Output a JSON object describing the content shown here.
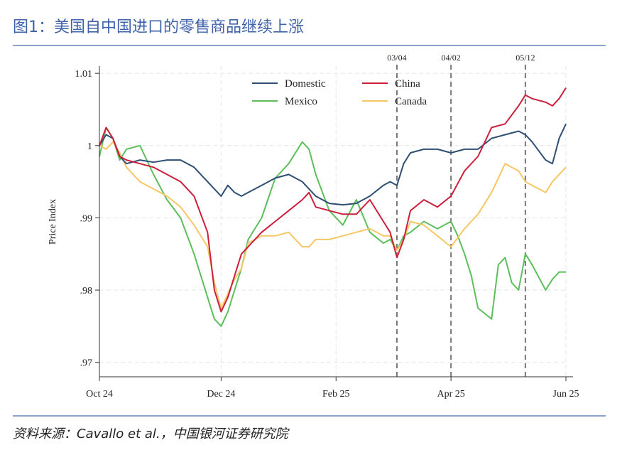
{
  "figure_title": "图1：美国自中国进口的零售商品继续上涨",
  "source": "资料来源：Cavallo et al.，中国银河证券研究院",
  "chart_data": {
    "type": "line",
    "title": "",
    "xlabel": "",
    "ylabel": "Price Index",
    "x_unit": "week index from Oct 24",
    "x_ticks": [
      {
        "x": 0,
        "label": "Oct 24"
      },
      {
        "x": 9,
        "label": "Dec 24"
      },
      {
        "x": 17.5,
        "label": "Feb 25"
      },
      {
        "x": 26,
        "label": "Apr 25"
      },
      {
        "x": 34.5,
        "label": "Jun 25"
      }
    ],
    "y_ticks": [
      {
        "y": 0.97,
        "label": ".97"
      },
      {
        "y": 0.98,
        "label": ".98"
      },
      {
        "y": 0.99,
        "label": ".99"
      },
      {
        "y": 1.0,
        "label": "1"
      },
      {
        "y": 1.01,
        "label": "1.01"
      }
    ],
    "xlim": [
      0,
      34.5
    ],
    "ylim": [
      0.968,
      1.011
    ],
    "grid": true,
    "legend_position": "top-center",
    "vlines": [
      {
        "x": 22,
        "label": "03/04"
      },
      {
        "x": 26,
        "label": "04/02"
      },
      {
        "x": 31.5,
        "label": "05/12"
      }
    ],
    "series": [
      {
        "name": "Domestic",
        "color": "#2e4f73",
        "x": [
          0,
          0.5,
          1,
          1.5,
          2,
          3,
          4,
          5,
          6,
          7,
          8,
          9,
          9.5,
          10,
          10.5,
          11,
          12,
          13,
          14,
          15,
          16,
          17,
          18,
          19,
          20,
          21,
          21.5,
          22,
          22.5,
          23,
          24,
          25,
          26,
          27,
          28,
          29,
          30,
          31,
          31.5,
          32,
          33,
          33.5,
          34,
          34.5
        ],
        "y": [
          1.0,
          1.0015,
          1.001,
          0.9985,
          0.9975,
          0.998,
          0.9977,
          0.998,
          0.998,
          0.997,
          0.995,
          0.993,
          0.9945,
          0.9935,
          0.993,
          0.9935,
          0.9945,
          0.9955,
          0.996,
          0.995,
          0.993,
          0.992,
          0.9918,
          0.992,
          0.993,
          0.9945,
          0.995,
          0.9945,
          0.9975,
          0.999,
          0.9995,
          0.9995,
          0.999,
          0.9995,
          0.9995,
          1.001,
          1.0015,
          1.002,
          1.0015,
          1.0005,
          0.998,
          0.9975,
          1.001,
          1.003
        ]
      },
      {
        "name": "China",
        "color": "#cc1f3b",
        "x": [
          0,
          0.5,
          1,
          1.5,
          2,
          3,
          4,
          5,
          6,
          7,
          8,
          8.5,
          9,
          9.5,
          10,
          10.5,
          11,
          12,
          13,
          14,
          15,
          15.5,
          16,
          17,
          18,
          19,
          20,
          21,
          21.5,
          22,
          22.5,
          23,
          24,
          25,
          26,
          27,
          28,
          29,
          30,
          31,
          31.5,
          32,
          33,
          33.5,
          34,
          34.5
        ],
        "y": [
          1.0,
          1.0025,
          1.001,
          0.9985,
          0.998,
          0.9975,
          0.997,
          0.996,
          0.995,
          0.993,
          0.988,
          0.98,
          0.977,
          0.979,
          0.982,
          0.985,
          0.986,
          0.988,
          0.9895,
          0.991,
          0.9925,
          0.9935,
          0.9915,
          0.991,
          0.9905,
          0.9905,
          0.9925,
          0.9895,
          0.988,
          0.9845,
          0.987,
          0.991,
          0.9925,
          0.9915,
          0.993,
          0.9965,
          0.9985,
          1.0025,
          1.003,
          1.0055,
          1.007,
          1.0065,
          1.006,
          1.0055,
          1.0065,
          1.008
        ]
      },
      {
        "name": "Mexico",
        "color": "#5cbf5c",
        "x": [
          0,
          0.5,
          1,
          1.5,
          2,
          3,
          4,
          5,
          6,
          7,
          8,
          8.5,
          9,
          9.5,
          10,
          10.5,
          11,
          12,
          13,
          14,
          15,
          15.5,
          16,
          17,
          18,
          19,
          20,
          21,
          21.5,
          22,
          22.5,
          23,
          24,
          25,
          26,
          26.5,
          27,
          27.5,
          28,
          29,
          29.5,
          30,
          30.5,
          31,
          31.5,
          32,
          33,
          33.5,
          34,
          34.5
        ],
        "y": [
          0.9985,
          1.0025,
          1.001,
          0.998,
          0.9995,
          1.0,
          0.996,
          0.9925,
          0.99,
          0.985,
          0.979,
          0.976,
          0.975,
          0.977,
          0.98,
          0.983,
          0.987,
          0.99,
          0.9955,
          0.9975,
          1.0005,
          0.9995,
          0.996,
          0.991,
          0.989,
          0.9925,
          0.988,
          0.9865,
          0.987,
          0.9855,
          0.9875,
          0.988,
          0.9895,
          0.9885,
          0.9895,
          0.9875,
          0.985,
          0.982,
          0.9775,
          0.976,
          0.9835,
          0.9845,
          0.981,
          0.98,
          0.985,
          0.9835,
          0.98,
          0.9815,
          0.9825,
          0.9825
        ]
      },
      {
        "name": "Canada",
        "color": "#f6c766",
        "x": [
          0,
          0.5,
          1,
          1.5,
          2,
          3,
          4,
          5,
          6,
          7,
          8,
          8.5,
          9,
          9.5,
          10,
          10.5,
          11,
          12,
          13,
          14,
          15,
          15.5,
          16,
          17,
          18,
          19,
          20,
          21,
          21.5,
          22,
          22.5,
          23,
          24,
          25,
          26,
          27,
          28,
          29,
          30,
          31,
          31.5,
          32,
          33,
          33.5,
          34,
          34.5
        ],
        "y": [
          1.0,
          0.9995,
          1.0005,
          0.999,
          0.997,
          0.995,
          0.994,
          0.993,
          0.9915,
          0.989,
          0.986,
          0.981,
          0.9775,
          0.9795,
          0.9815,
          0.983,
          0.9865,
          0.9875,
          0.9875,
          0.988,
          0.986,
          0.986,
          0.987,
          0.987,
          0.9875,
          0.988,
          0.9885,
          0.9875,
          0.9875,
          0.9855,
          0.987,
          0.9895,
          0.989,
          0.9875,
          0.986,
          0.9885,
          0.9905,
          0.9935,
          0.9975,
          0.9965,
          0.995,
          0.9945,
          0.9935,
          0.995,
          0.996,
          0.997
        ]
      }
    ]
  }
}
